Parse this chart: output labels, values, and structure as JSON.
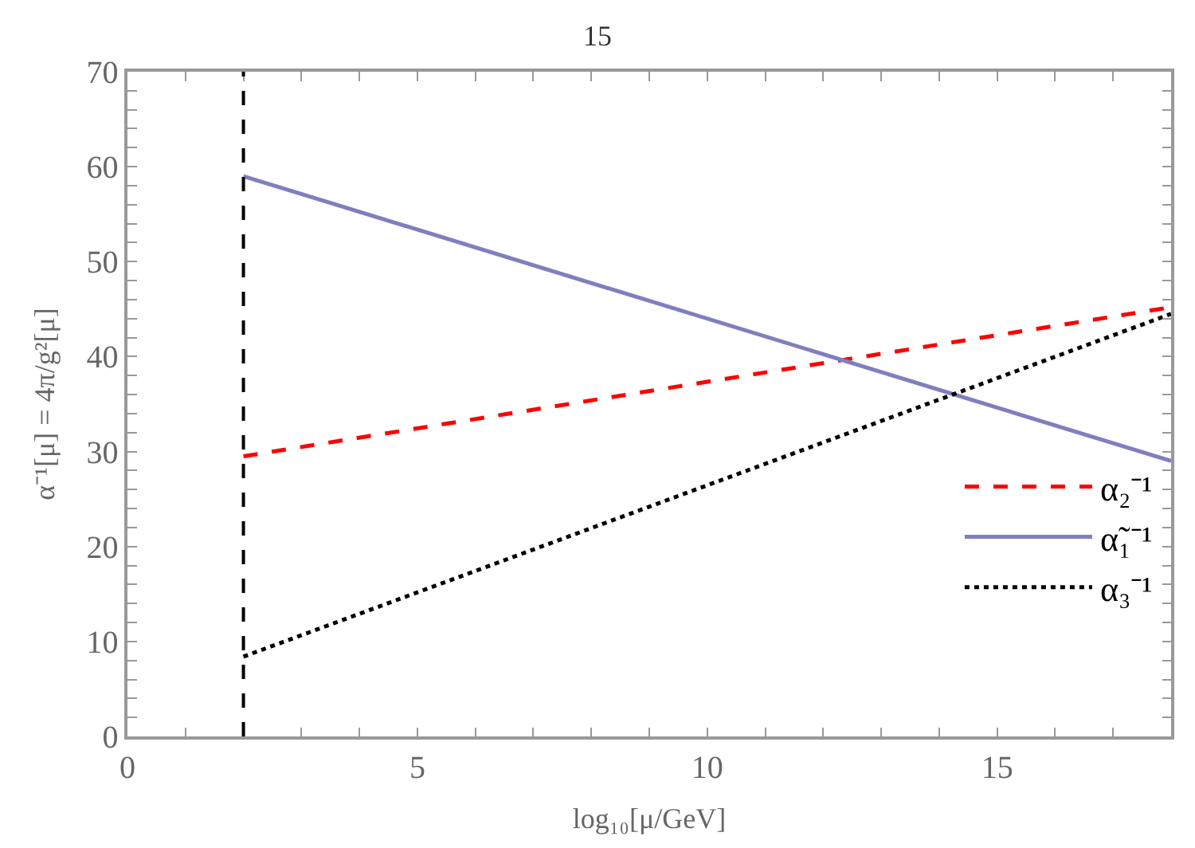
{
  "chart_data": {
    "type": "line",
    "title": "15",
    "xlabel": "log₁₀[μ/GeV]",
    "ylabel": "α⁻¹[μ] = 4π/g²[μ]",
    "x": [
      2,
      18
    ],
    "series": [
      {
        "name": "α₂⁻¹",
        "color": "#ff0000",
        "values": [
          29.5,
          45.2
        ],
        "line_style": "dashed"
      },
      {
        "name": "α̃₁⁻¹",
        "color": "#7f7fbf",
        "values": [
          59,
          29
        ],
        "line_style": "solid"
      },
      {
        "name": "α₃⁻¹",
        "color": "#000000",
        "values": [
          8.4,
          44.5
        ],
        "line_style": "dotted"
      }
    ],
    "xlim": [
      0,
      18
    ],
    "ylim": [
      0,
      70
    ],
    "xticks": [
      0,
      {
        "value": 1,
        "label": null
      },
      {
        "value": 2,
        "label": null
      },
      {
        "value": 3,
        "label": null
      },
      {
        "value": 4,
        "label": null
      },
      5,
      {
        "value": 6,
        "label": null
      },
      {
        "value": 7,
        "label": null
      },
      {
        "value": 8,
        "label": null
      },
      {
        "value": 9,
        "label": null
      },
      10,
      {
        "value": 11,
        "label": null
      },
      {
        "value": 12,
        "label": null
      },
      {
        "value": 13,
        "label": null
      },
      {
        "value": 14,
        "label": null
      },
      15,
      {
        "value": 16,
        "label": null
      },
      {
        "value": 17,
        "label": null
      }
    ],
    "yticks": [
      0,
      {
        "value": 2,
        "label": null
      },
      {
        "value": 4,
        "label": null
      },
      {
        "value": 6,
        "label": null
      },
      {
        "value": 8,
        "label": null
      },
      10,
      {
        "value": 12,
        "label": null
      },
      {
        "value": 14,
        "label": null
      },
      {
        "value": 16,
        "label": null
      },
      {
        "value": 18,
        "label": null
      },
      20,
      {
        "value": 22,
        "label": null
      },
      {
        "value": 24,
        "label": null
      },
      {
        "value": 26,
        "label": null
      },
      {
        "value": 28,
        "label": null
      },
      30,
      {
        "value": 32,
        "label": null
      },
      {
        "value": 34,
        "label": null
      },
      {
        "value": 36,
        "label": null
      },
      {
        "value": 38,
        "label": null
      },
      40,
      {
        "value": 42,
        "label": null
      },
      {
        "value": 44,
        "label": null
      },
      {
        "value": 46,
        "label": null
      },
      {
        "value": 48,
        "label": null
      },
      50,
      {
        "value": 52,
        "label": null
      },
      {
        "value": 54,
        "label": null
      },
      {
        "value": 56,
        "label": null
      },
      {
        "value": 58,
        "label": null
      },
      60,
      {
        "value": 62,
        "label": null
      },
      {
        "value": 64,
        "label": null
      },
      {
        "value": 66,
        "label": null
      },
      {
        "value": 68,
        "label": null
      },
      70
    ],
    "ref_lines": [
      {
        "axis": "x",
        "value": 2,
        "color": "#000000",
        "line_style": "dashed"
      }
    ],
    "legend": "right",
    "marker": "none"
  }
}
